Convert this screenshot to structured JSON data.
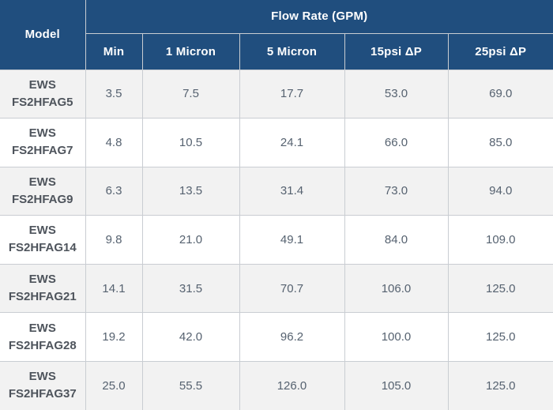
{
  "table": {
    "header": {
      "model_label": "Model",
      "group_label": "Flow Rate (GPM)",
      "columns": [
        "Min",
        "1 Micron",
        "5 Micron",
        "15psi ΔP",
        "25psi ΔP"
      ]
    },
    "rows": [
      {
        "brand": "EWS",
        "code": "FS2HFAG5",
        "values": [
          "3.5",
          "7.5",
          "17.7",
          "53.0",
          "69.0"
        ]
      },
      {
        "brand": "EWS",
        "code": "FS2HFAG7",
        "values": [
          "4.8",
          "10.5",
          "24.1",
          "66.0",
          "85.0"
        ]
      },
      {
        "brand": "EWS",
        "code": "FS2HFAG9",
        "values": [
          "6.3",
          "13.5",
          "31.4",
          "73.0",
          "94.0"
        ]
      },
      {
        "brand": "EWS",
        "code": "FS2HFAG14",
        "values": [
          "9.8",
          "21.0",
          "49.1",
          "84.0",
          "109.0"
        ]
      },
      {
        "brand": "EWS",
        "code": "FS2HFAG21",
        "values": [
          "14.1",
          "31.5",
          "70.7",
          "106.0",
          "125.0"
        ]
      },
      {
        "brand": "EWS",
        "code": "FS2HFAG28",
        "values": [
          "19.2",
          "42.0",
          "96.2",
          "100.0",
          "125.0"
        ]
      },
      {
        "brand": "EWS",
        "code": "FS2HFAG37",
        "values": [
          "25.0",
          "55.5",
          "126.0",
          "105.0",
          "125.0"
        ]
      }
    ]
  },
  "colors": {
    "header_background": "#204e7e",
    "header_text": "#ffffff",
    "row_stripe": "#f2f2f2",
    "row_plain": "#ffffff",
    "cell_border": "#c9cdd2",
    "model_text": "#4e545c",
    "value_text": "#566270"
  },
  "chart_data": {
    "type": "table",
    "title": "Flow Rate (GPM)",
    "columns": [
      "Model",
      "Min",
      "1 Micron",
      "5 Micron",
      "15psi ΔP",
      "25psi ΔP"
    ],
    "rows": [
      [
        "EWS FS2HFAG5",
        3.5,
        7.5,
        17.7,
        53.0,
        69.0
      ],
      [
        "EWS FS2HFAG7",
        4.8,
        10.5,
        24.1,
        66.0,
        85.0
      ],
      [
        "EWS FS2HFAG9",
        6.3,
        13.5,
        31.4,
        73.0,
        94.0
      ],
      [
        "EWS FS2HFAG14",
        9.8,
        21.0,
        49.1,
        84.0,
        109.0
      ],
      [
        "EWS FS2HFAG21",
        14.1,
        31.5,
        70.7,
        106.0,
        125.0
      ],
      [
        "EWS FS2HFAG28",
        19.2,
        42.0,
        96.2,
        100.0,
        125.0
      ],
      [
        "EWS FS2HFAG37",
        25.0,
        55.5,
        126.0,
        105.0,
        125.0
      ]
    ],
    "layout": {
      "grid": true,
      "striped_rows": true,
      "header_rows": 2
    }
  }
}
